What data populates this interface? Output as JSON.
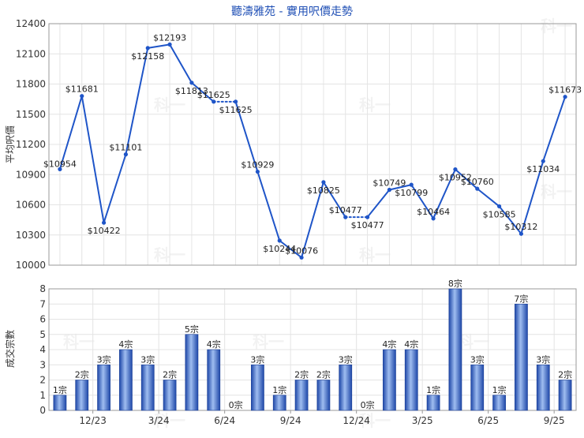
{
  "chart_data": [
    {
      "type": "line",
      "title": "聽濤雅苑 - 實用呎價走勢",
      "ylabel": "平均呎價",
      "ylim": [
        10000,
        12400
      ],
      "yticks": [
        10000,
        10300,
        10600,
        10900,
        11200,
        11500,
        11800,
        12100,
        12400
      ],
      "grid": true,
      "series": [
        {
          "values": [
            10954,
            11681,
            10422,
            11101,
            12158,
            12193,
            11813,
            11625,
            11625,
            10929,
            10244,
            10076,
            10825,
            10477,
            10477,
            10749,
            10799,
            10464,
            10952,
            10760,
            10585,
            10312,
            11034,
            11673
          ],
          "labels": [
            "$10954",
            "$11681",
            "$10422",
            "$11101",
            "$12158",
            "$12193",
            "$11813",
            "$11625",
            "$11625",
            "$10929",
            "$10244",
            "$10076",
            "$10825",
            "$10477",
            "$10477",
            "$10749",
            "$10799",
            "$10464",
            "$10952",
            "$10760",
            "$10585",
            "$10312",
            "$11034",
            "$11673"
          ],
          "interpolated_segments": [
            [
              7,
              8
            ],
            [
              13,
              14
            ]
          ]
        }
      ]
    },
    {
      "type": "bar",
      "ylabel": "成交宗數",
      "ylim": [
        0,
        8
      ],
      "yticks": [
        0,
        1,
        2,
        3,
        4,
        5,
        6,
        7,
        8
      ],
      "grid": true,
      "values": [
        1,
        2,
        3,
        4,
        3,
        2,
        5,
        4,
        0,
        3,
        1,
        2,
        2,
        3,
        0,
        4,
        4,
        1,
        8,
        3,
        1,
        7,
        3,
        2
      ],
      "labels": [
        "1宗",
        "2宗",
        "3宗",
        "4宗",
        "3宗",
        "2宗",
        "5宗",
        "4宗",
        "0宗",
        "3宗",
        "1宗",
        "2宗",
        "2宗",
        "3宗",
        "0宗",
        "4宗",
        "4宗",
        "1宗",
        "8宗",
        "3宗",
        "1宗",
        "7宗",
        "3宗",
        "2宗"
      ],
      "x_ticks": [
        {
          "at": 2,
          "label": "12/23"
        },
        {
          "at": 5,
          "label": "3/24"
        },
        {
          "at": 8,
          "label": "6/24"
        },
        {
          "at": 11,
          "label": "9/24"
        },
        {
          "at": 14,
          "label": "12/24"
        },
        {
          "at": 17,
          "label": "3/25"
        },
        {
          "at": 20,
          "label": "6/25"
        },
        {
          "at": 23,
          "label": "9/25"
        }
      ]
    }
  ],
  "watermark": "科一",
  "colors": {
    "line": "#1f55c8",
    "bar_dark": "#1e47a8",
    "bar_light": "#9fbdf0",
    "grid": "#e4e4e4",
    "axis": "#999999",
    "title": "#1f4fb5"
  }
}
